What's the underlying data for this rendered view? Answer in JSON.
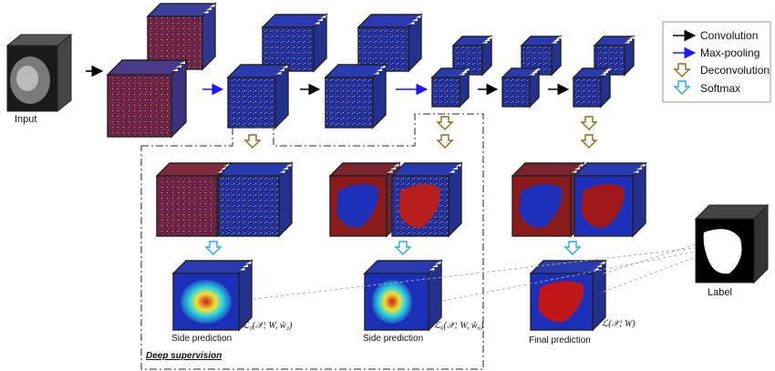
{
  "legend": {
    "items": [
      {
        "label": "Convolution",
        "color": "#000000",
        "icon": "black-arrow-icon"
      },
      {
        "label": "Max-pooling",
        "color": "#1a1aff",
        "icon": "blue-arrow-icon"
      },
      {
        "label": "Deconvolution",
        "color": "#8a6d1a",
        "icon": "hollow-down-arrow-icon"
      },
      {
        "label": "Softmax",
        "color": "#29a8e0",
        "icon": "cyan-hollow-down-arrow-icon"
      }
    ]
  },
  "labels": {
    "input": "Input",
    "label": "Label",
    "deep_supervision": "Deep supervision",
    "side_prediction_1": "Side prediction",
    "side_prediction_2": "Side prediction",
    "final_prediction": "Final prediction"
  },
  "loss_terms": {
    "loss_3": "ℒ₃(𝒳; W, ŵ₃)",
    "loss_6": "ℒ₆(𝒳; W, ŵ₆)",
    "loss_final": "ℒ(𝒳; W)"
  },
  "colors": {
    "feature_blue": "#1f2e9e",
    "feature_red": "#8c1f1f",
    "cube_edge": "#222222",
    "supervision_border": "#555555",
    "dashed_link": "#aaaaaa"
  }
}
